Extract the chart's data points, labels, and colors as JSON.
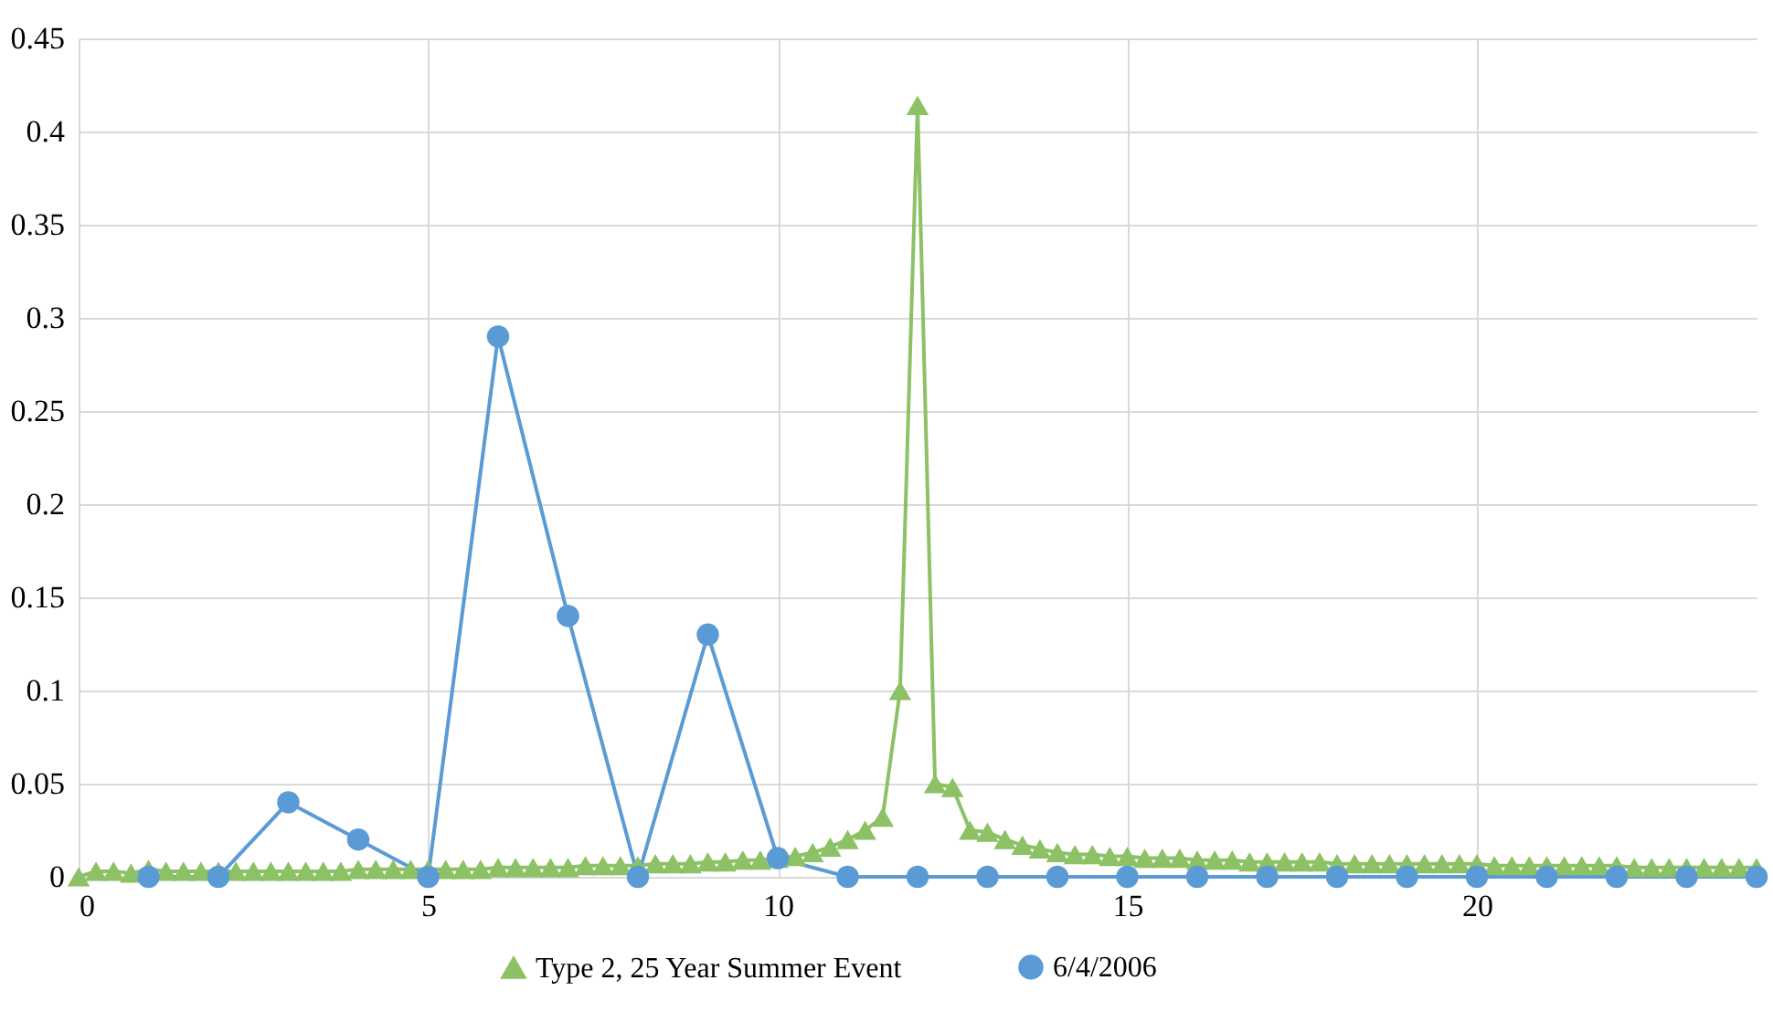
{
  "chart_data": {
    "type": "line",
    "xlim": [
      0,
      24
    ],
    "xticks": [
      0,
      5,
      10,
      15,
      20
    ],
    "ylim": [
      0,
      0.45
    ],
    "yticks": [
      0,
      0.05,
      0.1,
      0.15,
      0.2,
      0.25,
      0.3,
      0.35,
      0.4,
      0.45
    ],
    "grid": true,
    "legend": "bottom",
    "line_style": "solid",
    "series": [
      {
        "name": "Type 2, 25 Year Summer Event",
        "color": "#8cc165",
        "marker": "triangle",
        "x": [
          0,
          0.25,
          0.5,
          0.75,
          1,
          1.25,
          1.5,
          1.75,
          2,
          2.25,
          2.5,
          2.75,
          3,
          3.25,
          3.5,
          3.75,
          4,
          4.25,
          4.5,
          4.75,
          5,
          5.25,
          5.5,
          5.75,
          6,
          6.25,
          6.5,
          6.75,
          7,
          7.25,
          7.5,
          7.75,
          8,
          8.25,
          8.5,
          8.75,
          9,
          9.25,
          9.5,
          9.75,
          10,
          10.25,
          10.5,
          10.75,
          11,
          11.25,
          11.5,
          11.75,
          12,
          12.25,
          12.5,
          12.75,
          13,
          13.25,
          13.5,
          13.75,
          14,
          14.25,
          14.5,
          14.75,
          15,
          15.25,
          15.5,
          15.75,
          16,
          16.25,
          16.5,
          16.75,
          17,
          17.25,
          17.5,
          17.75,
          18,
          18.25,
          18.5,
          18.75,
          19,
          19.25,
          19.5,
          19.75,
          20,
          20.25,
          20.5,
          20.75,
          21,
          21.25,
          21.5,
          21.75,
          22,
          22.25,
          22.5,
          22.75,
          23,
          23.25,
          23.5,
          23.75,
          24
        ],
        "values": [
          0,
          0.003,
          0.003,
          0.002,
          0.004,
          0.003,
          0.003,
          0.003,
          0.003,
          0.003,
          0.003,
          0.003,
          0.003,
          0.003,
          0.003,
          0.003,
          0.004,
          0.004,
          0.004,
          0.004,
          0.004,
          0.004,
          0.004,
          0.004,
          0.005,
          0.005,
          0.005,
          0.005,
          0.005,
          0.006,
          0.006,
          0.006,
          0.006,
          0.007,
          0.007,
          0.007,
          0.008,
          0.008,
          0.009,
          0.009,
          0.01,
          0.011,
          0.013,
          0.016,
          0.02,
          0.025,
          0.032,
          0.1,
          0.414,
          0.05,
          0.048,
          0.025,
          0.024,
          0.02,
          0.017,
          0.015,
          0.013,
          0.012,
          0.012,
          0.011,
          0.011,
          0.01,
          0.01,
          0.01,
          0.009,
          0.009,
          0.009,
          0.008,
          0.008,
          0.008,
          0.008,
          0.008,
          0.007,
          0.007,
          0.007,
          0.007,
          0.007,
          0.007,
          0.007,
          0.007,
          0.007,
          0.006,
          0.006,
          0.006,
          0.006,
          0.006,
          0.006,
          0.006,
          0.006,
          0.005,
          0.005,
          0.005,
          0.005,
          0.005,
          0.005,
          0.005,
          0.005
        ]
      },
      {
        "name": "6/4/2006",
        "color": "#5b9bd5",
        "marker": "circle",
        "x": [
          1,
          2,
          3,
          4,
          5,
          6,
          7,
          8,
          9,
          10,
          11,
          12,
          13,
          14,
          15,
          16,
          17,
          18,
          19,
          20,
          21,
          22,
          23,
          24
        ],
        "values": [
          0,
          0,
          0.04,
          0.02,
          0,
          0.29,
          0.14,
          0,
          0.13,
          0.01,
          0,
          0,
          0,
          0,
          0,
          0,
          0,
          0,
          0,
          0,
          0,
          0,
          0,
          0
        ]
      }
    ]
  }
}
